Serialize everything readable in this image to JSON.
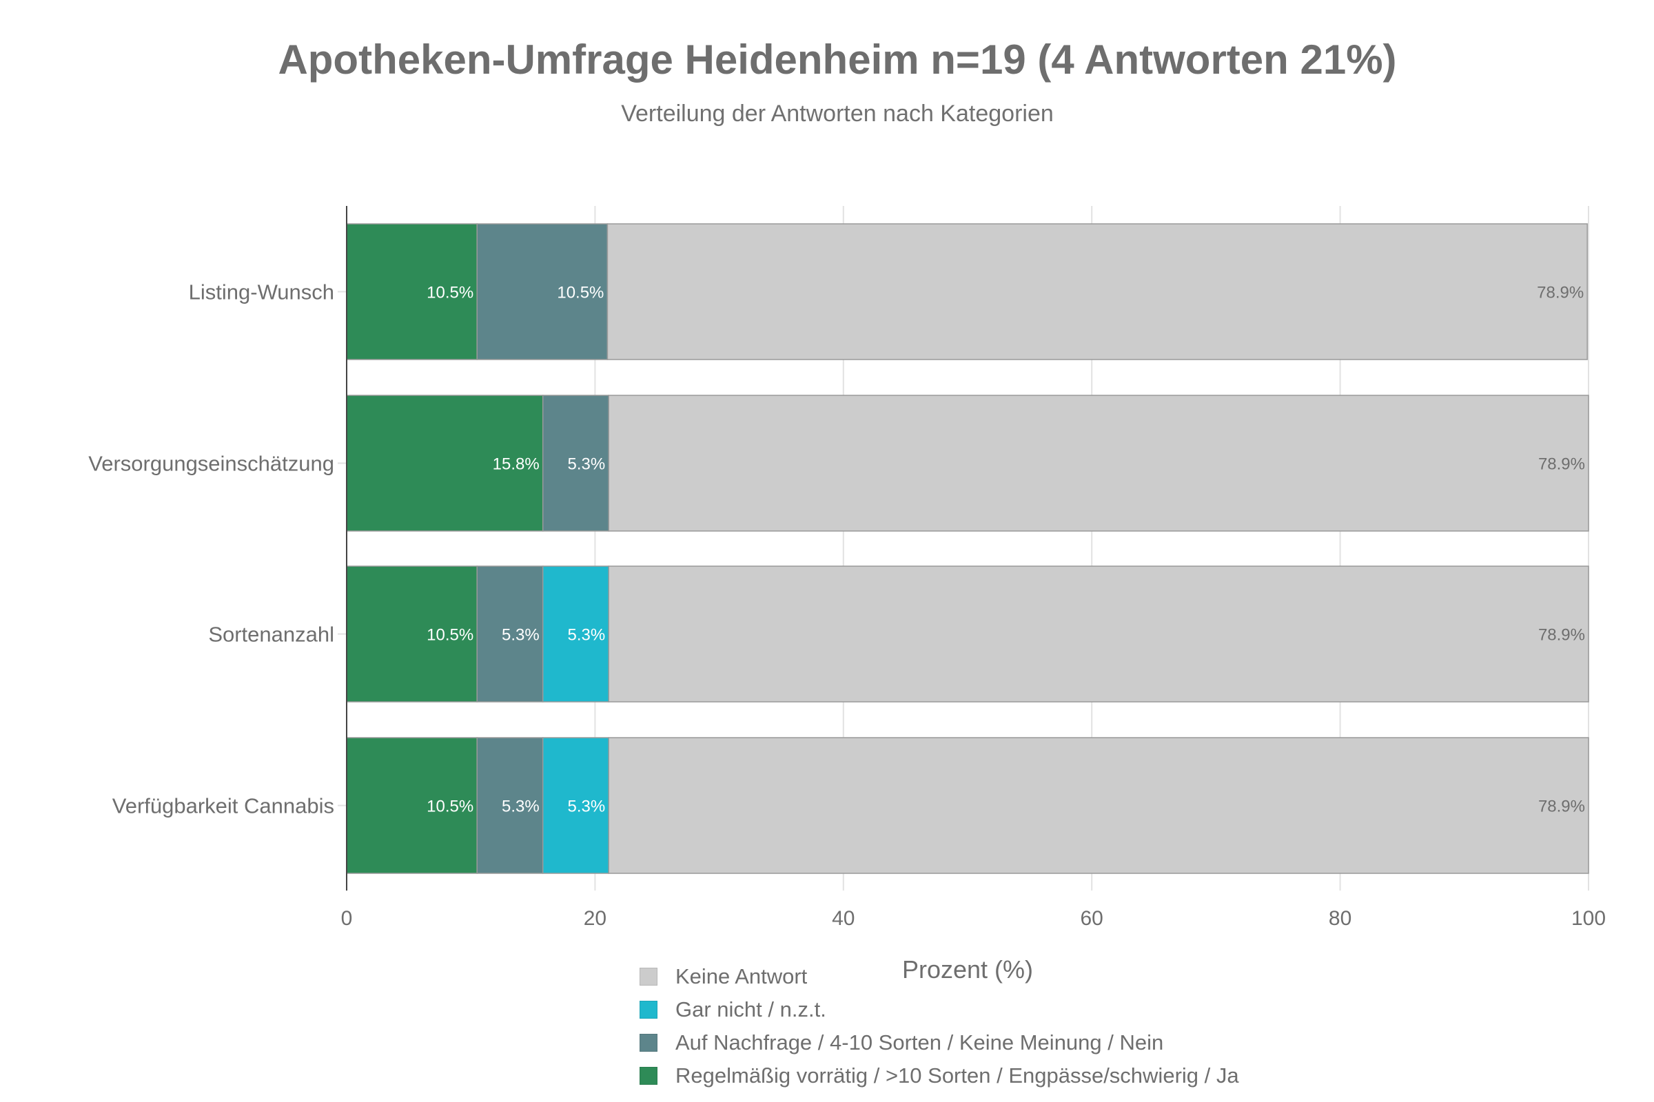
{
  "chart_data": {
    "type": "bar",
    "orientation": "horizontal",
    "stacked": true,
    "title": "Apotheken-Umfrage Heidenheim n=19 (4 Antworten 21%)",
    "subtitle": "Verteilung der Antworten nach Kategorien",
    "xlabel": "Prozent (%)",
    "ylabel": "",
    "xlim": [
      0,
      100
    ],
    "xticks": [
      "0",
      "20",
      "40",
      "60",
      "80",
      "100"
    ],
    "grid": true,
    "legend_position": "bottom",
    "categories": [
      "Listing-Wunsch",
      "Versorgungseinschätzung",
      "Sortenanzahl",
      "Verfügbarkeit Cannabis"
    ],
    "series": [
      {
        "name": "Regelmäßig vorrätig / >10 Sorten / Engpässe/schwierig / Ja",
        "color": "#2e8b57",
        "label_color": "#ffffff",
        "values": [
          10.5,
          15.8,
          10.5,
          10.5
        ],
        "labels": [
          "10.5%",
          "15.8%",
          "10.5%",
          "10.5%"
        ]
      },
      {
        "name": "Auf Nachfrage / 4-10 Sorten / Keine Meinung / Nein",
        "color": "#5d858b",
        "label_color": "#ffffff",
        "values": [
          10.5,
          5.3,
          5.3,
          5.3
        ],
        "labels": [
          "10.5%",
          "5.3%",
          "5.3%",
          "5.3%"
        ]
      },
      {
        "name": "Gar nicht / n.z.t.",
        "color": "#1fb8cd",
        "label_color": "#ffffff",
        "values": [
          0,
          0,
          5.3,
          5.3
        ],
        "labels": [
          "",
          "",
          "5.3%",
          "5.3%"
        ]
      },
      {
        "name": "Keine Antwort",
        "color": "#cccccc",
        "label_color": "#6e6e6e",
        "values": [
          78.9,
          78.9,
          78.9,
          78.9
        ],
        "labels": [
          "78.9%",
          "78.9%",
          "78.9%",
          "78.9%"
        ]
      }
    ],
    "legend_order": [
      "Keine Antwort",
      "Gar nicht / n.z.t.",
      "Auf Nachfrage / 4-10 Sorten / Keine Meinung / Nein",
      "Regelmäßig vorrätig / >10 Sorten / Engpässe/schwierig / Ja"
    ]
  }
}
